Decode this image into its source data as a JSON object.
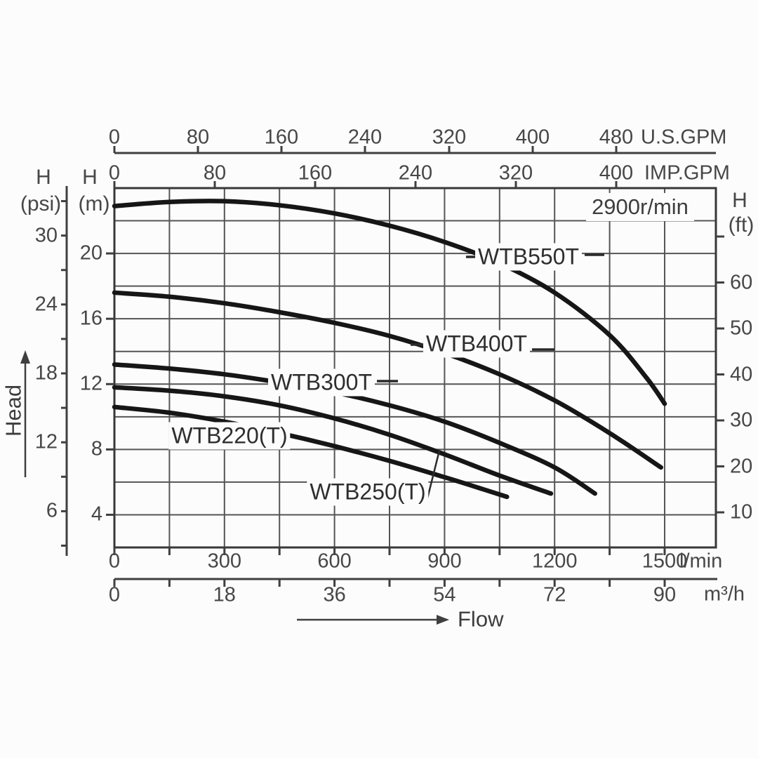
{
  "annotation": {
    "speed": "2900r/min"
  },
  "labels": {
    "flow": "Flow",
    "head": "Head"
  },
  "axes": {
    "us_gpm": {
      "unit": "U.S.GPM",
      "ticks": [
        "0",
        "80",
        "160",
        "240",
        "320",
        "400",
        "480"
      ]
    },
    "imp_gpm": {
      "unit": "IMP.GPM",
      "ticks": [
        "0",
        "80",
        "160",
        "240",
        "320",
        "400"
      ]
    },
    "l_min": {
      "unit": "l/min",
      "ticks": [
        "0",
        "300",
        "600",
        "900",
        "1200",
        "1500"
      ]
    },
    "m3_h": {
      "unit": "m³/h",
      "ticks": [
        "0",
        "18",
        "36",
        "54",
        "72",
        "90"
      ]
    },
    "head_m": {
      "h": "H",
      "unit": "(m)",
      "ticks": [
        "20",
        "16",
        "12",
        "8",
        "4"
      ]
    },
    "head_psi": {
      "h": "H",
      "unit": "(psi)",
      "ticks": [
        "30",
        "24",
        "18",
        "12",
        "6"
      ]
    },
    "head_ft": {
      "h": "H",
      "unit": "(ft)",
      "ticks": [
        "60",
        "50",
        "40",
        "30",
        "20",
        "10"
      ]
    }
  },
  "chart_data": {
    "type": "line",
    "xlabel": "Flow",
    "ylabel": "Head",
    "rpm": "2900r/min",
    "flow_axis": {
      "unit": "l/min",
      "range": [
        0,
        1650
      ],
      "gridline_step": 150,
      "secondary_units": [
        "m³/h",
        "U.S.GPM",
        "IMP.GPM"
      ]
    },
    "head_axis": {
      "unit": "m",
      "range": [
        2,
        24
      ],
      "gridline_step": 2,
      "secondary_units": [
        "psi",
        "ft"
      ]
    },
    "grid": true,
    "series": [
      {
        "name": "WTB550T",
        "points": [
          [
            0,
            22.9
          ],
          [
            150,
            23.15
          ],
          [
            300,
            23.2
          ],
          [
            450,
            22.95
          ],
          [
            600,
            22.45
          ],
          [
            750,
            21.7
          ],
          [
            900,
            20.7
          ],
          [
            1050,
            19.4
          ],
          [
            1200,
            17.6
          ],
          [
            1350,
            15.0
          ],
          [
            1450,
            12.4
          ],
          [
            1500,
            10.8
          ]
        ]
      },
      {
        "name": "WTB400T",
        "points": [
          [
            0,
            17.6
          ],
          [
            150,
            17.35
          ],
          [
            300,
            16.95
          ],
          [
            450,
            16.4
          ],
          [
            600,
            15.75
          ],
          [
            750,
            14.95
          ],
          [
            900,
            13.9
          ],
          [
            1050,
            12.6
          ],
          [
            1200,
            11.0
          ],
          [
            1350,
            9.0
          ],
          [
            1490,
            6.9
          ]
        ]
      },
      {
        "name": "WTB300T",
        "points": [
          [
            0,
            13.2
          ],
          [
            150,
            12.95
          ],
          [
            300,
            12.6
          ],
          [
            450,
            12.1
          ],
          [
            600,
            11.5
          ],
          [
            750,
            10.7
          ],
          [
            900,
            9.7
          ],
          [
            1050,
            8.4
          ],
          [
            1200,
            6.9
          ],
          [
            1310,
            5.3
          ]
        ]
      },
      {
        "name": "WTB250(T)",
        "points": [
          [
            0,
            11.8
          ],
          [
            150,
            11.6
          ],
          [
            300,
            11.25
          ],
          [
            450,
            10.7
          ],
          [
            600,
            9.9
          ],
          [
            750,
            8.9
          ],
          [
            900,
            7.7
          ],
          [
            1050,
            6.4
          ],
          [
            1190,
            5.3
          ]
        ]
      },
      {
        "name": "WTB220(T)",
        "points": [
          [
            0,
            10.6
          ],
          [
            150,
            10.25
          ],
          [
            300,
            9.7
          ],
          [
            450,
            9.0
          ],
          [
            600,
            8.2
          ],
          [
            750,
            7.3
          ],
          [
            900,
            6.3
          ],
          [
            1000,
            5.6
          ],
          [
            1070,
            5.1
          ]
        ]
      }
    ]
  }
}
